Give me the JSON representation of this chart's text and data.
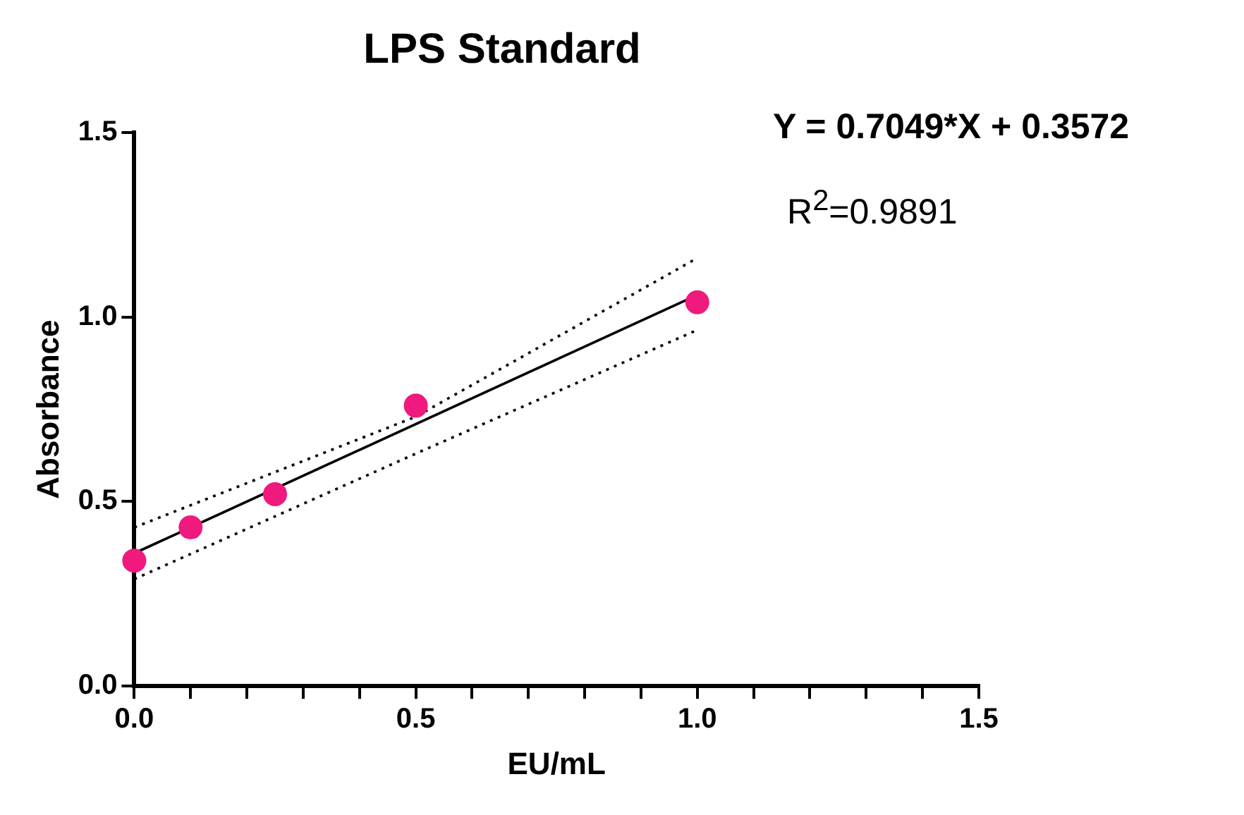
{
  "chart_data": {
    "type": "scatter",
    "title": "LPS Standard",
    "xlabel": "EU/mL",
    "ylabel": "Absorbance",
    "x": [
      0,
      0.1,
      0.25,
      0.5,
      1
    ],
    "series": [
      {
        "type": "scatter",
        "color": "#f0197d",
        "values": [
          0.34,
          0.43,
          0.52,
          0.76,
          1.04
        ],
        "marker": "circle"
      },
      {
        "type": "line",
        "color": "#000000",
        "x": [
          0,
          1
        ],
        "values": [
          0.36,
          1.06
        ],
        "line_style": "solid",
        "marker": "none"
      },
      {
        "type": "line",
        "color": "#000000",
        "x": [
          0,
          0.5,
          1
        ],
        "values": [
          0.43,
          0.73,
          1.16
        ],
        "line_style": "dotted",
        "marker": "none"
      },
      {
        "type": "line",
        "color": "#000000",
        "x": [
          0,
          0.5,
          1
        ],
        "values": [
          0.29,
          0.63,
          0.965
        ],
        "line_style": "dotted",
        "marker": "none"
      }
    ],
    "xlim": [
      0,
      1.5
    ],
    "xticks": [
      {
        "value": 0,
        "label": "0.0"
      },
      {
        "value": 0.1,
        "label": null
      },
      {
        "value": 0.2,
        "label": null
      },
      {
        "value": 0.3,
        "label": null
      },
      {
        "value": 0.4,
        "label": null
      },
      {
        "value": 0.5,
        "label": "0.5"
      },
      {
        "value": 0.6,
        "label": null
      },
      {
        "value": 0.7,
        "label": null
      },
      {
        "value": 0.8,
        "label": null
      },
      {
        "value": 0.9,
        "label": null
      },
      {
        "value": 1,
        "label": "1.0"
      },
      {
        "value": 1.1,
        "label": null
      },
      {
        "value": 1.2,
        "label": null
      },
      {
        "value": 1.3,
        "label": null
      },
      {
        "value": 1.4,
        "label": null
      },
      {
        "value": 1.5,
        "label": "1.5"
      }
    ],
    "ylim": [
      0,
      1.5
    ],
    "yticks": [
      {
        "value": 0,
        "label": "0.0"
      },
      {
        "value": 0.5,
        "label": "0.5"
      },
      {
        "value": 1,
        "label": "1.0"
      },
      {
        "value": 1.5,
        "label": "1.5"
      }
    ],
    "grid": false,
    "legend": false,
    "annotations": [
      "Y = 0.7049*X + 0.3572",
      "R$^{2}$=0.9891"
    ]
  }
}
